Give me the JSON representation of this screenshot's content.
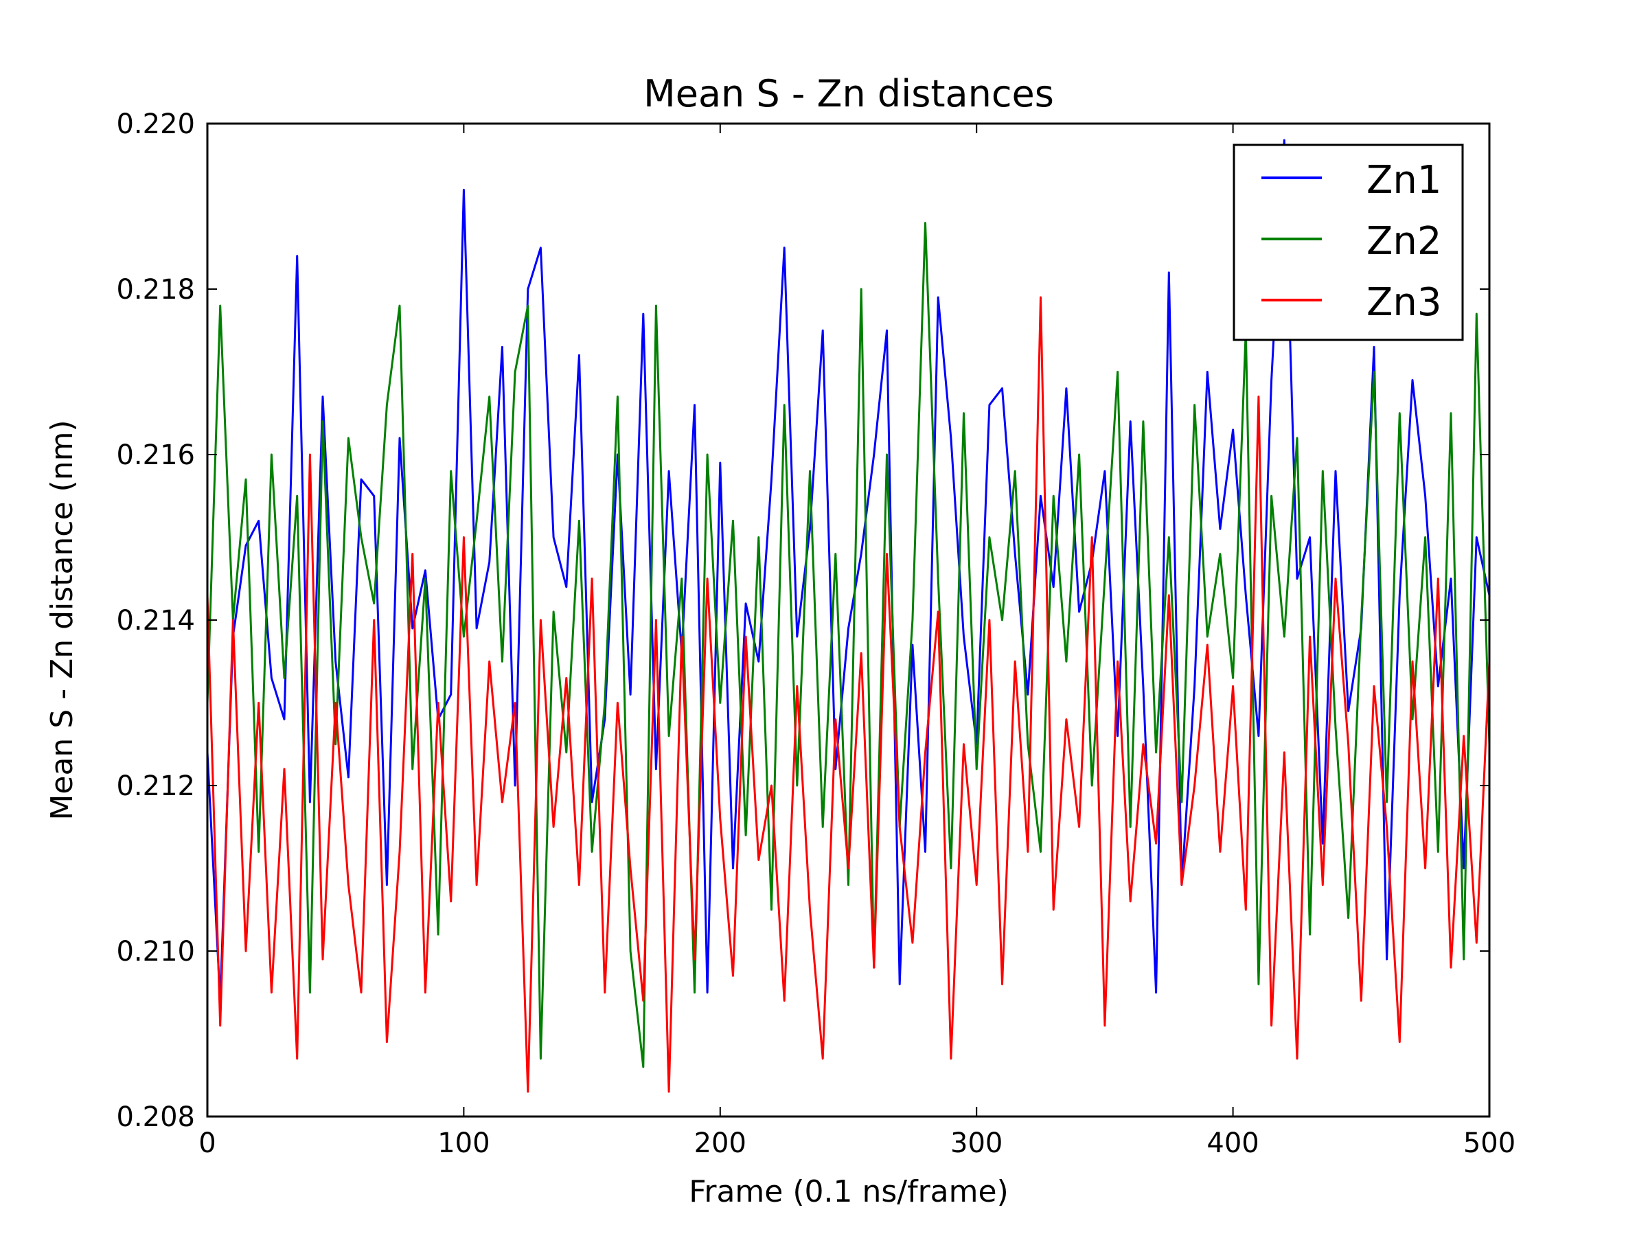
{
  "chart_data": {
    "type": "line",
    "title": "Mean S - Zn distances",
    "xlabel": "Frame (0.1 ns/frame)",
    "ylabel": "Mean S - Zn distance (nm)",
    "xlim": [
      0,
      500
    ],
    "ylim": [
      0.208,
      0.22
    ],
    "xticks": [
      "0",
      "100",
      "200",
      "300",
      "400",
      "500"
    ],
    "yticks": [
      "0.208",
      "0.210",
      "0.212",
      "0.214",
      "0.216",
      "0.218",
      "0.220"
    ],
    "grid": false,
    "legend_position": "top-right",
    "x": [
      0,
      5,
      10,
      15,
      20,
      25,
      30,
      35,
      40,
      45,
      50,
      55,
      60,
      65,
      70,
      75,
      80,
      85,
      90,
      95,
      100,
      105,
      110,
      115,
      120,
      125,
      130,
      135,
      140,
      145,
      150,
      155,
      160,
      165,
      170,
      175,
      180,
      185,
      190,
      195,
      200,
      205,
      210,
      215,
      220,
      225,
      230,
      235,
      240,
      245,
      250,
      255,
      260,
      265,
      270,
      275,
      280,
      285,
      290,
      295,
      300,
      305,
      310,
      315,
      320,
      325,
      330,
      335,
      340,
      345,
      350,
      355,
      360,
      365,
      370,
      375,
      380,
      385,
      390,
      395,
      400,
      405,
      410,
      415,
      420,
      425,
      430,
      435,
      440,
      445,
      450,
      455,
      460,
      465,
      470,
      475,
      480,
      485,
      490,
      495,
      500
    ],
    "series": [
      {
        "name": "Zn1",
        "color": "#0000ff",
        "values": [
          0.2124,
          0.2094,
          0.2138,
          0.2149,
          0.2152,
          0.2133,
          0.2128,
          0.2184,
          0.2118,
          0.2167,
          0.2135,
          0.2121,
          0.2157,
          0.2155,
          0.2108,
          0.2162,
          0.2139,
          0.2146,
          0.2128,
          0.2131,
          0.2192,
          0.2139,
          0.2147,
          0.2173,
          0.212,
          0.218,
          0.2185,
          0.215,
          0.2144,
          0.2172,
          0.2118,
          0.2128,
          0.216,
          0.2131,
          0.2177,
          0.2122,
          0.2158,
          0.2136,
          0.2166,
          0.2095,
          0.2159,
          0.211,
          0.2142,
          0.2135,
          0.2157,
          0.2185,
          0.2138,
          0.2151,
          0.2175,
          0.2122,
          0.2139,
          0.2148,
          0.216,
          0.2175,
          0.2096,
          0.2137,
          0.2112,
          0.2179,
          0.2162,
          0.2138,
          0.2125,
          0.2166,
          0.2168,
          0.2148,
          0.2131,
          0.2155,
          0.2144,
          0.2168,
          0.2141,
          0.2147,
          0.2158,
          0.2126,
          0.2164,
          0.2132,
          0.2095,
          0.2182,
          0.2108,
          0.2132,
          0.217,
          0.2151,
          0.2163,
          0.2143,
          0.2126,
          0.2169,
          0.2198,
          0.2145,
          0.215,
          0.2113,
          0.2158,
          0.2129,
          0.2139,
          0.2173,
          0.2099,
          0.2143,
          0.2169,
          0.2155,
          0.2132,
          0.2145,
          0.211,
          0.215,
          0.2143
        ]
      },
      {
        "name": "Zn2",
        "color": "#008000",
        "values": [
          0.213,
          0.2178,
          0.214,
          0.2157,
          0.2112,
          0.216,
          0.2133,
          0.2155,
          0.2095,
          0.2164,
          0.2125,
          0.2162,
          0.215,
          0.2142,
          0.2166,
          0.2178,
          0.2122,
          0.2145,
          0.2102,
          0.2158,
          0.2138,
          0.2152,
          0.2167,
          0.2135,
          0.217,
          0.2178,
          0.2087,
          0.2141,
          0.2124,
          0.2152,
          0.2112,
          0.213,
          0.2167,
          0.21,
          0.2086,
          0.2178,
          0.2126,
          0.2145,
          0.2095,
          0.216,
          0.213,
          0.2152,
          0.2114,
          0.215,
          0.2105,
          0.2166,
          0.212,
          0.2158,
          0.2115,
          0.2148,
          0.2108,
          0.218,
          0.2098,
          0.216,
          0.2115,
          0.214,
          0.2188,
          0.2145,
          0.211,
          0.2165,
          0.2122,
          0.215,
          0.214,
          0.2158,
          0.2125,
          0.2112,
          0.2155,
          0.2135,
          0.216,
          0.212,
          0.2145,
          0.217,
          0.2115,
          0.2164,
          0.2124,
          0.215,
          0.2118,
          0.2166,
          0.2138,
          0.2148,
          0.2133,
          0.2175,
          0.2096,
          0.2155,
          0.2138,
          0.2162,
          0.2102,
          0.2158,
          0.2127,
          0.2104,
          0.214,
          0.217,
          0.2118,
          0.2165,
          0.2128,
          0.215,
          0.2112,
          0.2165,
          0.2099,
          0.2177,
          0.2125
        ]
      },
      {
        "name": "Zn3",
        "color": "#ff0000",
        "values": [
          0.2143,
          0.2091,
          0.214,
          0.21,
          0.213,
          0.2095,
          0.2122,
          0.2087,
          0.216,
          0.2099,
          0.213,
          0.2108,
          0.2095,
          0.214,
          0.2089,
          0.2112,
          0.2148,
          0.2095,
          0.213,
          0.2106,
          0.215,
          0.2108,
          0.2135,
          0.2118,
          0.213,
          0.2083,
          0.214,
          0.2115,
          0.2133,
          0.2108,
          0.2145,
          0.2095,
          0.213,
          0.211,
          0.2094,
          0.214,
          0.2083,
          0.2138,
          0.2099,
          0.2145,
          0.2116,
          0.2097,
          0.2138,
          0.2111,
          0.212,
          0.2094,
          0.2132,
          0.2105,
          0.2087,
          0.2128,
          0.211,
          0.2136,
          0.2098,
          0.2148,
          0.2115,
          0.2101,
          0.2124,
          0.2141,
          0.2087,
          0.2125,
          0.2108,
          0.214,
          0.2096,
          0.2135,
          0.2112,
          0.2179,
          0.2105,
          0.2128,
          0.2115,
          0.215,
          0.2091,
          0.2135,
          0.2106,
          0.2125,
          0.2113,
          0.2143,
          0.2108,
          0.212,
          0.2137,
          0.2112,
          0.2132,
          0.2105,
          0.2167,
          0.2091,
          0.2124,
          0.2087,
          0.2138,
          0.2108,
          0.2145,
          0.2125,
          0.2094,
          0.2132,
          0.2115,
          0.2089,
          0.2135,
          0.211,
          0.2145,
          0.2098,
          0.2126,
          0.2101,
          0.2135
        ]
      }
    ]
  }
}
